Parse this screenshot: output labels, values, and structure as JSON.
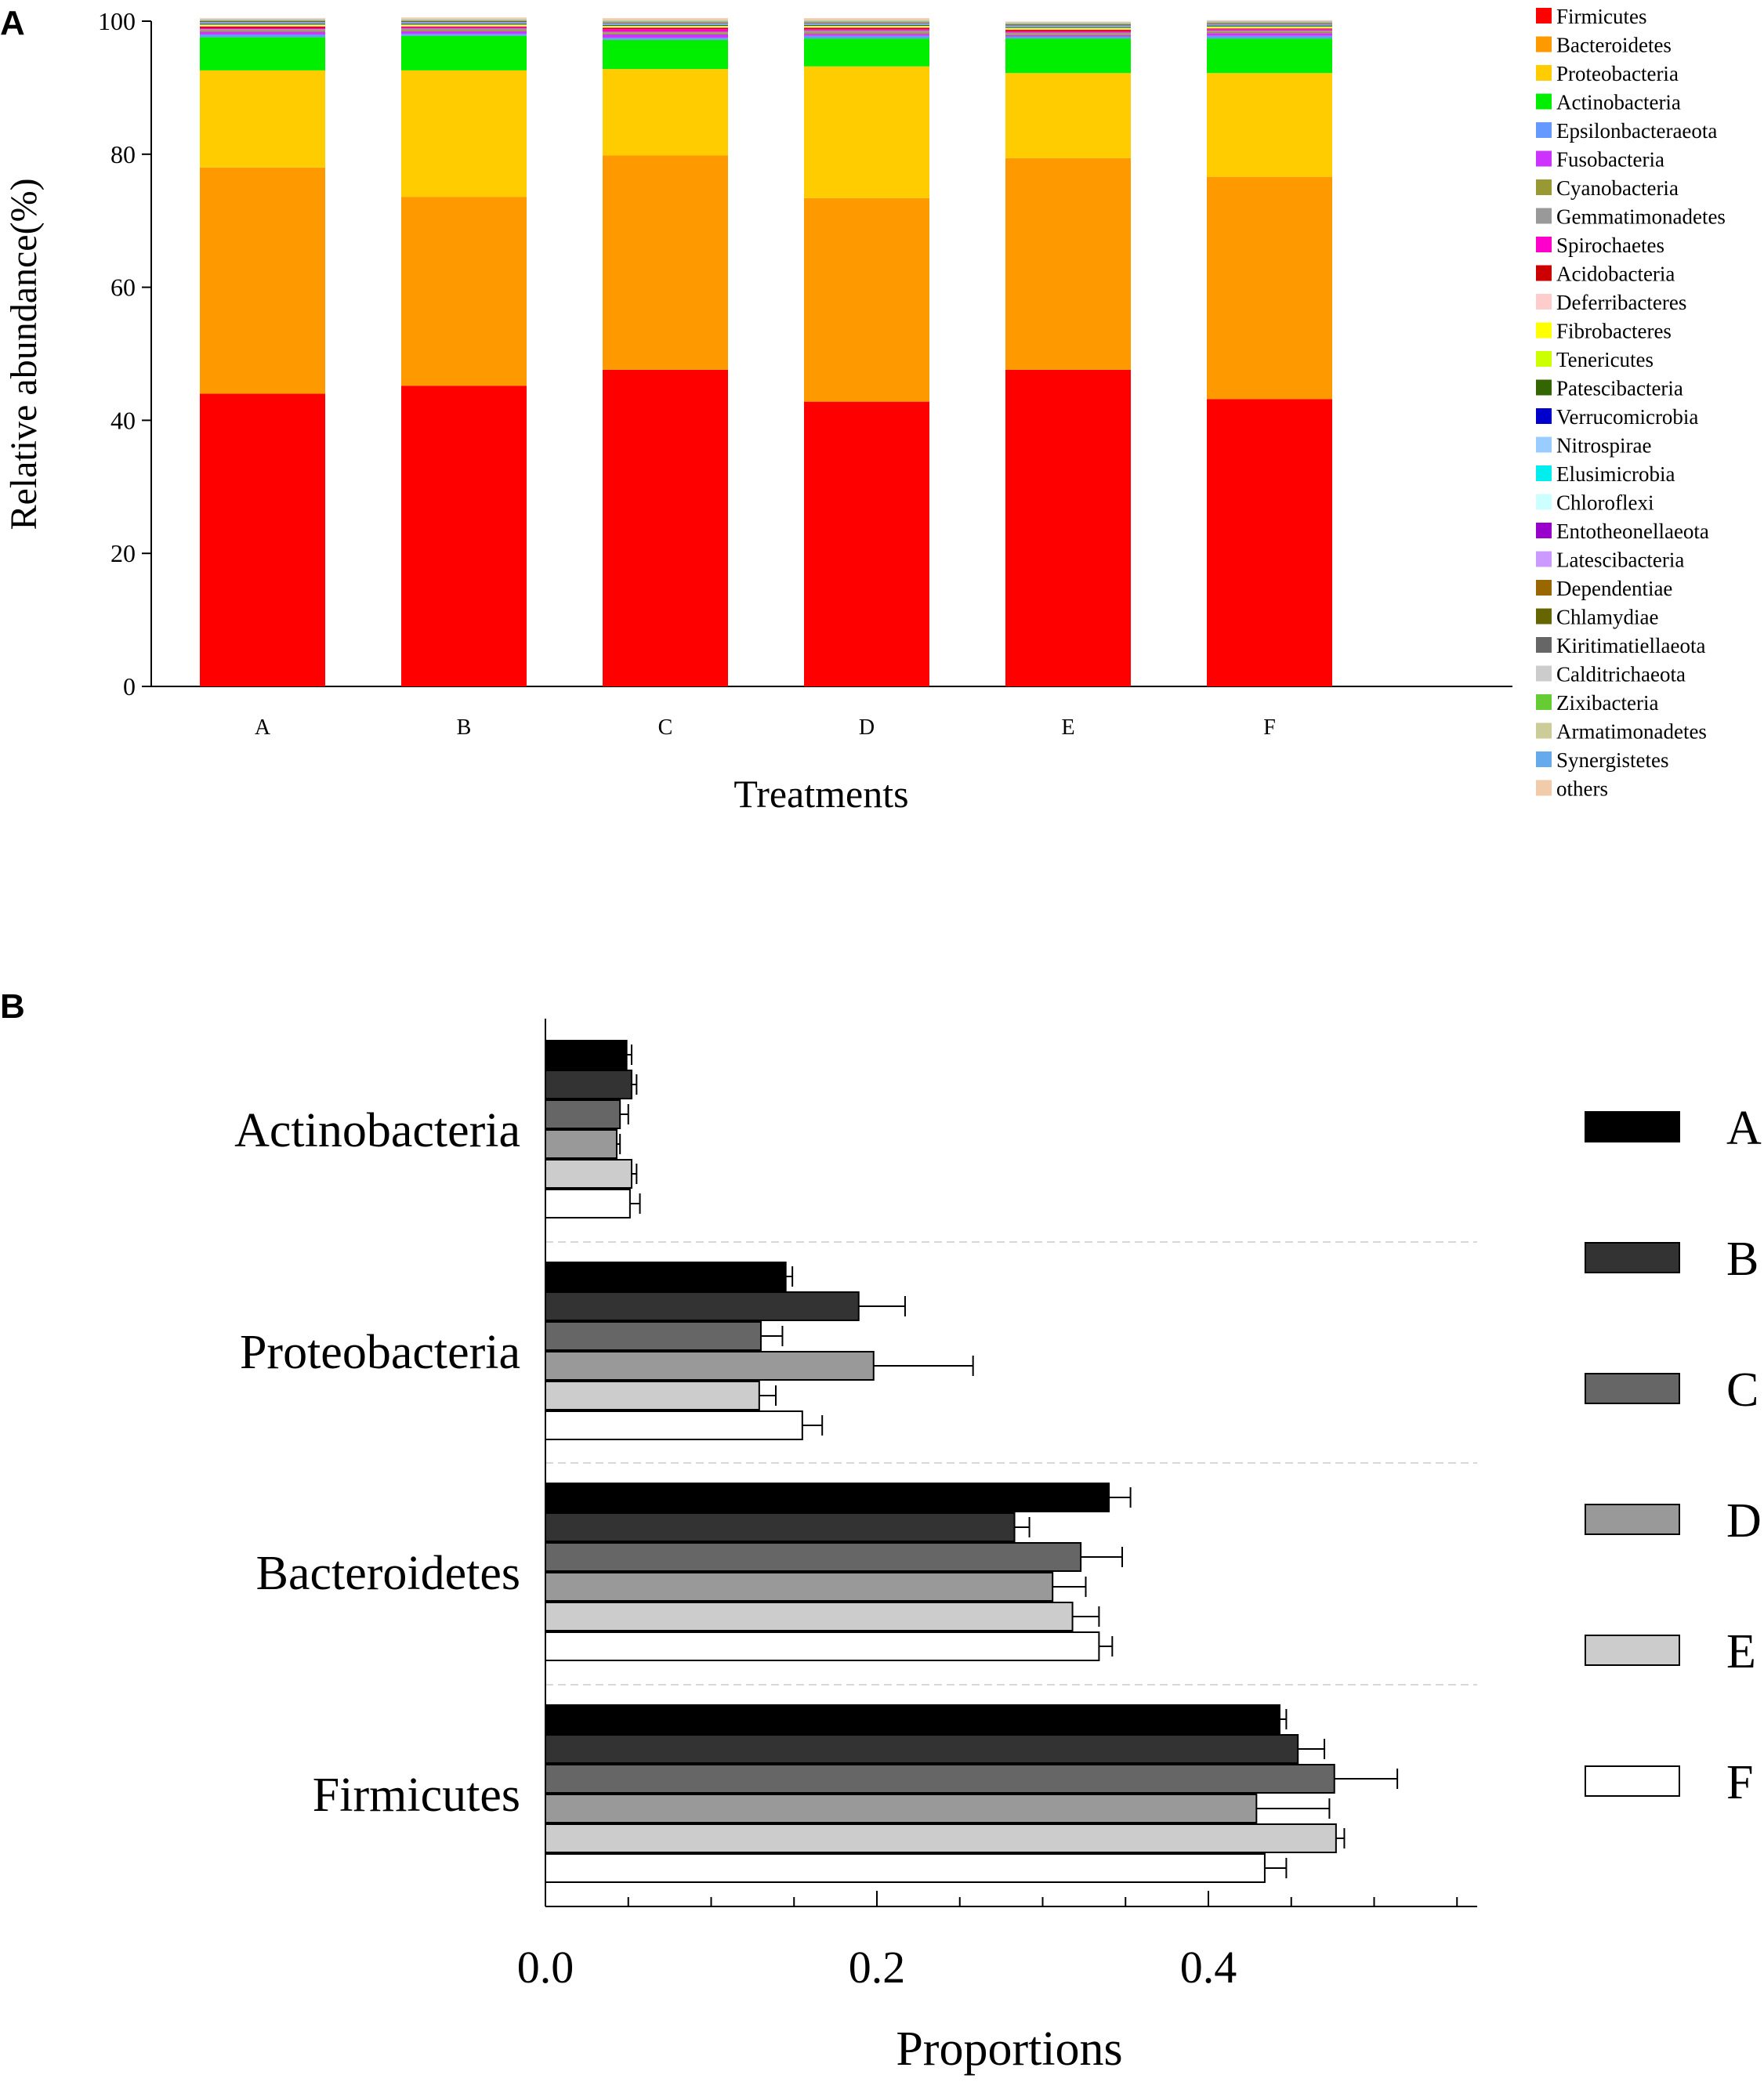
{
  "panel_a": {
    "label": "A"
  },
  "panel_b": {
    "label": "B"
  },
  "chart_data": [
    {
      "type": "bar",
      "stacked": true,
      "panel": "A",
      "title": "",
      "xlabel": "Treatments",
      "ylabel": "Relative abundance(%)",
      "ylim": [
        0,
        100
      ],
      "yticks": [
        0,
        20,
        40,
        60,
        80,
        100
      ],
      "categories": [
        "A",
        "B",
        "C",
        "D",
        "E",
        "F"
      ],
      "legend_position": "right",
      "series": [
        {
          "name": "Firmicutes",
          "color": "#ff0000",
          "values": [
            44.0,
            45.2,
            47.6,
            42.8,
            47.6,
            43.2
          ]
        },
        {
          "name": "Bacteroidetes",
          "color": "#ff9900",
          "values": [
            34.0,
            28.4,
            32.2,
            30.6,
            31.8,
            33.4
          ]
        },
        {
          "name": "Proteobacteria",
          "color": "#ffcc00",
          "values": [
            14.6,
            19.0,
            13.0,
            19.8,
            12.8,
            15.6
          ]
        },
        {
          "name": "Actinobacteria",
          "color": "#00ee00",
          "values": [
            5.0,
            5.2,
            4.4,
            4.2,
            5.2,
            5.2
          ]
        },
        {
          "name": "Epsilonbacteraeota",
          "color": "#6699ff",
          "values": [
            0.4,
            0.3,
            0.3,
            0.4,
            0.3,
            0.4
          ]
        },
        {
          "name": "Fusobacteria",
          "color": "#cc33ff",
          "values": [
            0.4,
            0.4,
            0.5,
            0.3,
            0.2,
            0.4
          ]
        },
        {
          "name": "Cyanobacteria",
          "color": "#999933",
          "values": [
            0.2,
            0.2,
            0.2,
            0.2,
            0.2,
            0.2
          ]
        },
        {
          "name": "Gemmatimonadetes",
          "color": "#999999",
          "values": [
            0.2,
            0.2,
            0.2,
            0.3,
            0.2,
            0.2
          ]
        },
        {
          "name": "Spirochaetes",
          "color": "#ff00cc",
          "values": [
            0.2,
            0.2,
            0.4,
            0.2,
            0.2,
            0.2
          ]
        },
        {
          "name": "Acidobacteria",
          "color": "#cc0000",
          "values": [
            0.2,
            0.1,
            0.2,
            0.2,
            0.2,
            0.1
          ]
        },
        {
          "name": "Deferribacteres",
          "color": "#ffcccc",
          "values": [
            0.1,
            0.1,
            0.1,
            0.1,
            0.1,
            0.1
          ]
        },
        {
          "name": "Fibrobacteres",
          "color": "#ffff00",
          "values": [
            0.1,
            0.1,
            0.1,
            0.1,
            0.1,
            0.1
          ]
        },
        {
          "name": "Tenericutes",
          "color": "#ccff00",
          "values": [
            0.1,
            0.1,
            0.1,
            0.1,
            0.1,
            0.1
          ]
        },
        {
          "name": "Patescibacteria",
          "color": "#336600",
          "values": [
            0.1,
            0.1,
            0.1,
            0.1,
            0.1,
            0.1
          ]
        },
        {
          "name": "Verrucomicrobia",
          "color": "#0000cc",
          "values": [
            0.05,
            0.05,
            0.05,
            0.05,
            0.05,
            0.05
          ]
        },
        {
          "name": "Nitrospirae",
          "color": "#99ccff",
          "values": [
            0.05,
            0.05,
            0.05,
            0.05,
            0.05,
            0.05
          ]
        },
        {
          "name": "Elusimicrobia",
          "color": "#00eeee",
          "values": [
            0.05,
            0.05,
            0.05,
            0.05,
            0.05,
            0.05
          ]
        },
        {
          "name": "Chloroflexi",
          "color": "#ccffff",
          "values": [
            0.05,
            0.05,
            0.05,
            0.05,
            0.05,
            0.05
          ]
        },
        {
          "name": "Entotheonellaeota",
          "color": "#9900cc",
          "values": [
            0.05,
            0.05,
            0.05,
            0.05,
            0.05,
            0.05
          ]
        },
        {
          "name": "Latescibacteria",
          "color": "#cc99ff",
          "values": [
            0.05,
            0.05,
            0.05,
            0.05,
            0.05,
            0.05
          ]
        },
        {
          "name": "Dependentiae",
          "color": "#996600",
          "values": [
            0.05,
            0.05,
            0.05,
            0.05,
            0.05,
            0.05
          ]
        },
        {
          "name": "Chlamydiae",
          "color": "#666600",
          "values": [
            0.05,
            0.05,
            0.05,
            0.05,
            0.05,
            0.05
          ]
        },
        {
          "name": "Kiritimatiellaeota",
          "color": "#666666",
          "values": [
            0.05,
            0.05,
            0.05,
            0.05,
            0.05,
            0.05
          ]
        },
        {
          "name": "Calditrichaeota",
          "color": "#cccccc",
          "values": [
            0.05,
            0.05,
            0.05,
            0.05,
            0.05,
            0.05
          ]
        },
        {
          "name": "Zixibacteria",
          "color": "#66cc33",
          "values": [
            0.05,
            0.05,
            0.05,
            0.05,
            0.05,
            0.05
          ]
        },
        {
          "name": "Armatimonadetes",
          "color": "#cccc99",
          "values": [
            0.05,
            0.05,
            0.05,
            0.05,
            0.05,
            0.05
          ]
        },
        {
          "name": "Synergistetes",
          "color": "#66aaee",
          "values": [
            0.05,
            0.05,
            0.05,
            0.05,
            0.05,
            0.05
          ]
        },
        {
          "name": "others",
          "color": "#f2ccaa",
          "values": [
            0.2,
            0.3,
            0.4,
            0.4,
            0.2,
            0.2
          ]
        }
      ]
    },
    {
      "type": "bar",
      "orientation": "horizontal",
      "panel": "B",
      "title": "",
      "xlabel": "Proportions",
      "ylabel": "",
      "xlim": [
        0,
        0.56
      ],
      "xticks": [
        0.0,
        0.2,
        0.4
      ],
      "xtick_labels": [
        "0.0",
        "0.2",
        "0.4"
      ],
      "categories": [
        "Actinobacteria",
        "Proteobacteria",
        "Bacteroidetes",
        "Firmicutes"
      ],
      "legend_position": "right",
      "series": [
        {
          "name": "A",
          "color": "#000000",
          "values": [
            0.049,
            0.145,
            0.34,
            0.443
          ],
          "errors": [
            0.003,
            0.004,
            0.013,
            0.004
          ]
        },
        {
          "name": "B",
          "color": "#333333",
          "values": [
            0.052,
            0.189,
            0.283,
            0.454
          ],
          "errors": [
            0.003,
            0.028,
            0.009,
            0.016
          ]
        },
        {
          "name": "C",
          "color": "#666666",
          "values": [
            0.045,
            0.13,
            0.323,
            0.476
          ],
          "errors": [
            0.005,
            0.013,
            0.025,
            0.038
          ]
        },
        {
          "name": "D",
          "color": "#999999",
          "values": [
            0.043,
            0.198,
            0.306,
            0.429
          ],
          "errors": [
            0.002,
            0.06,
            0.02,
            0.044
          ]
        },
        {
          "name": "E",
          "color": "#cccccc",
          "values": [
            0.052,
            0.129,
            0.318,
            0.477
          ],
          "errors": [
            0.003,
            0.01,
            0.016,
            0.005
          ]
        },
        {
          "name": "F",
          "color": "#ffffff",
          "values": [
            0.051,
            0.155,
            0.334,
            0.434
          ],
          "errors": [
            0.006,
            0.012,
            0.008,
            0.013
          ]
        }
      ]
    }
  ]
}
